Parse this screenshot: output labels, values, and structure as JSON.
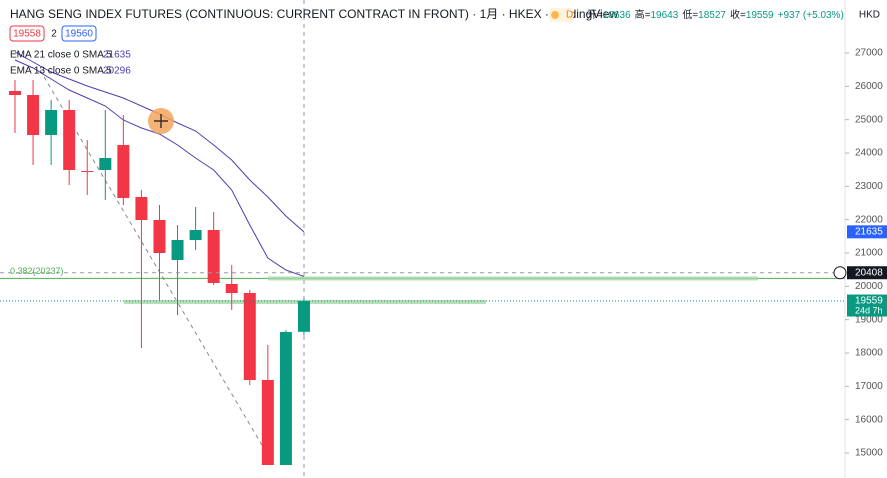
{
  "chart_data": {
    "type": "candlestick",
    "title": "HANG SENG INDEX FUTURES (CONTINUOUS: CURRENT CONTRACT IN FRONT) · 1月 · HKEX · TradingView",
    "badge": "D",
    "ohlc_header": [
      {
        "label": "开=",
        "value": 18636
      },
      {
        "label": "高=",
        "value": 19643
      },
      {
        "label": "低=",
        "value": 18527
      },
      {
        "label": "收=",
        "value": 19559
      }
    ],
    "change": "+937 (+5.03%)",
    "buttons": [
      "19558",
      "2",
      "19560"
    ],
    "currency": "HKD",
    "ylim": [
      14250,
      28590
    ],
    "yticks": [
      15000,
      16000,
      17000,
      18000,
      19000,
      20000,
      21000,
      22000,
      23000,
      24000,
      25000,
      26000,
      27000
    ],
    "up_color": "#089981",
    "down_color": "#f23645",
    "open": [
      25860,
      25740,
      24540,
      25290,
      23460,
      23490,
      24240,
      22680,
      21990,
      20790,
      21390,
      21690,
      20070,
      19800,
      17190,
      14640,
      18636
    ],
    "high": [
      26190,
      26190,
      25590,
      25590,
      24390,
      25290,
      25140,
      22890,
      22440,
      21840,
      22380,
      22230,
      20640,
      19890,
      18240,
      18690,
      19643
    ],
    "low": [
      24600,
      23640,
      23640,
      23040,
      22740,
      22590,
      22440,
      18150,
      19590,
      19140,
      21090,
      20040,
      19290,
      17040,
      14640,
      14640,
      18527
    ],
    "close": [
      25740,
      24540,
      25290,
      23490,
      23430,
      23850,
      22650,
      21990,
      21000,
      21390,
      21690,
      20100,
      19800,
      17190,
      14640,
      18630,
      19559
    ],
    "series": [
      {
        "name": "EMA 21 close 0 SMA 5",
        "last": 21635,
        "color": "#4c3fb0",
        "values": [
          27030,
          26730,
          26430,
          26220,
          26010,
          25830,
          25650,
          25410,
          25170,
          24900,
          24660,
          24240,
          23790,
          23190,
          22680,
          22110,
          21635
        ]
      },
      {
        "name": "EMA 13 close 0 SMA 5",
        "last": 20296,
        "color": "#4c3fb0",
        "values": [
          26790,
          26550,
          26220,
          25890,
          25650,
          25410,
          24990,
          24750,
          24570,
          24240,
          23850,
          23490,
          22890,
          21840,
          20850,
          20490,
          20296
        ]
      }
    ],
    "fib_level": {
      "label": "0.382(20237)",
      "value": 20237
    },
    "axis_labels": [
      {
        "value": 21635,
        "color": "#2962ff"
      },
      {
        "value": 20408,
        "color": "#131722"
      },
      {
        "value": 19559,
        "sub": "24d 7h",
        "color": "#089981"
      }
    ]
  }
}
